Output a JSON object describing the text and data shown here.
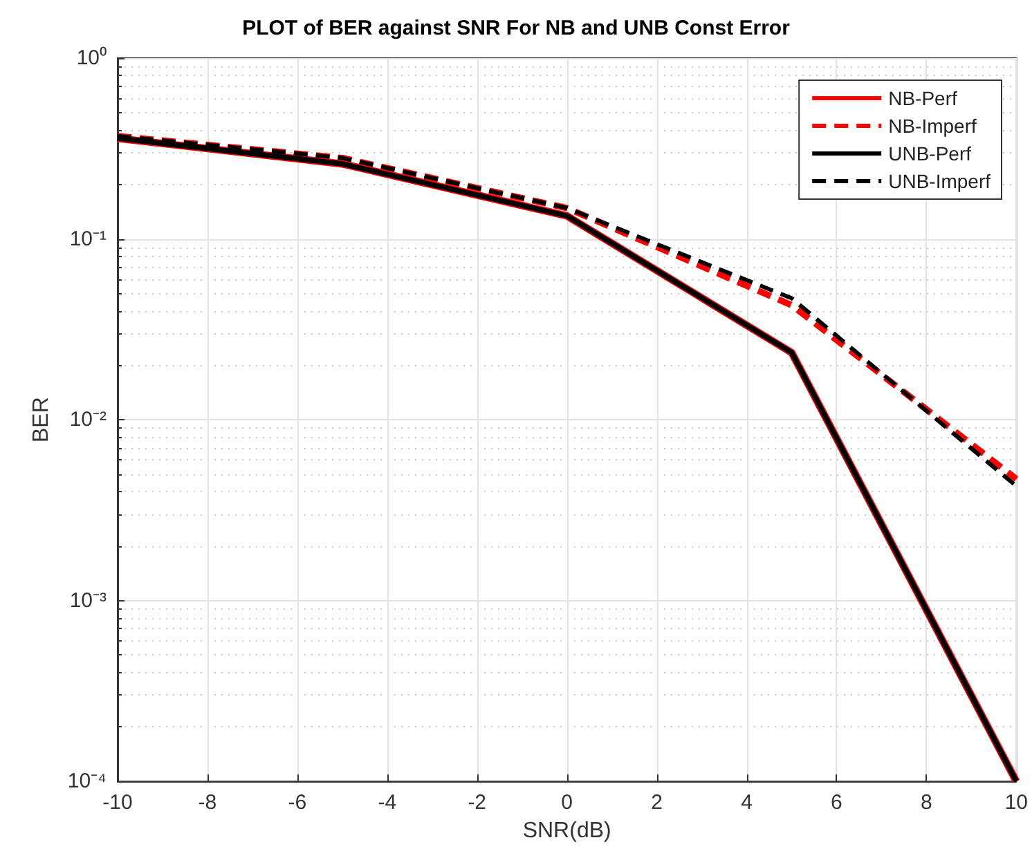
{
  "chart_data": {
    "type": "line",
    "title": "PLOT of BER against SNR For NB and UNB Const Error",
    "xlabel": "SNR(dB)",
    "ylabel": "BER",
    "x": [
      -10,
      -5,
      0,
      5,
      10
    ],
    "series": [
      {
        "name": "NB-Perf",
        "color": "#ff0000",
        "line_style": "solid",
        "values": [
          0.36,
          0.26,
          0.134,
          0.0235,
          0.0001
        ]
      },
      {
        "name": "NB-Imperf",
        "color": "#ff0000",
        "line_style": "dashed",
        "values": [
          0.37,
          0.28,
          0.148,
          0.043,
          0.0047
        ]
      },
      {
        "name": "UNB-Perf",
        "color": "#000000",
        "line_style": "solid",
        "values": [
          0.36,
          0.26,
          0.134,
          0.0235,
          0.0001
        ]
      },
      {
        "name": "UNB-Imperf",
        "color": "#000000",
        "line_style": "dashed",
        "values": [
          0.37,
          0.28,
          0.148,
          0.047,
          0.0043
        ]
      }
    ],
    "xlim": [
      -10,
      10
    ],
    "xticks": [
      -10,
      -8,
      -6,
      -4,
      -2,
      0,
      2,
      4,
      6,
      8,
      10
    ],
    "ylim": [
      0.0001,
      1
    ],
    "yticks": [
      {
        "value": 0.0001,
        "label": "10⁻⁴"
      },
      {
        "value": 0.001,
        "label": "10⁻³"
      },
      {
        "value": 0.01,
        "label": "10⁻²"
      },
      {
        "value": 0.1,
        "label": "10⁻¹"
      },
      {
        "value": 1,
        "label": "10⁰"
      }
    ],
    "log": "y",
    "grid": true,
    "legend": "top right",
    "marker": "none"
  }
}
